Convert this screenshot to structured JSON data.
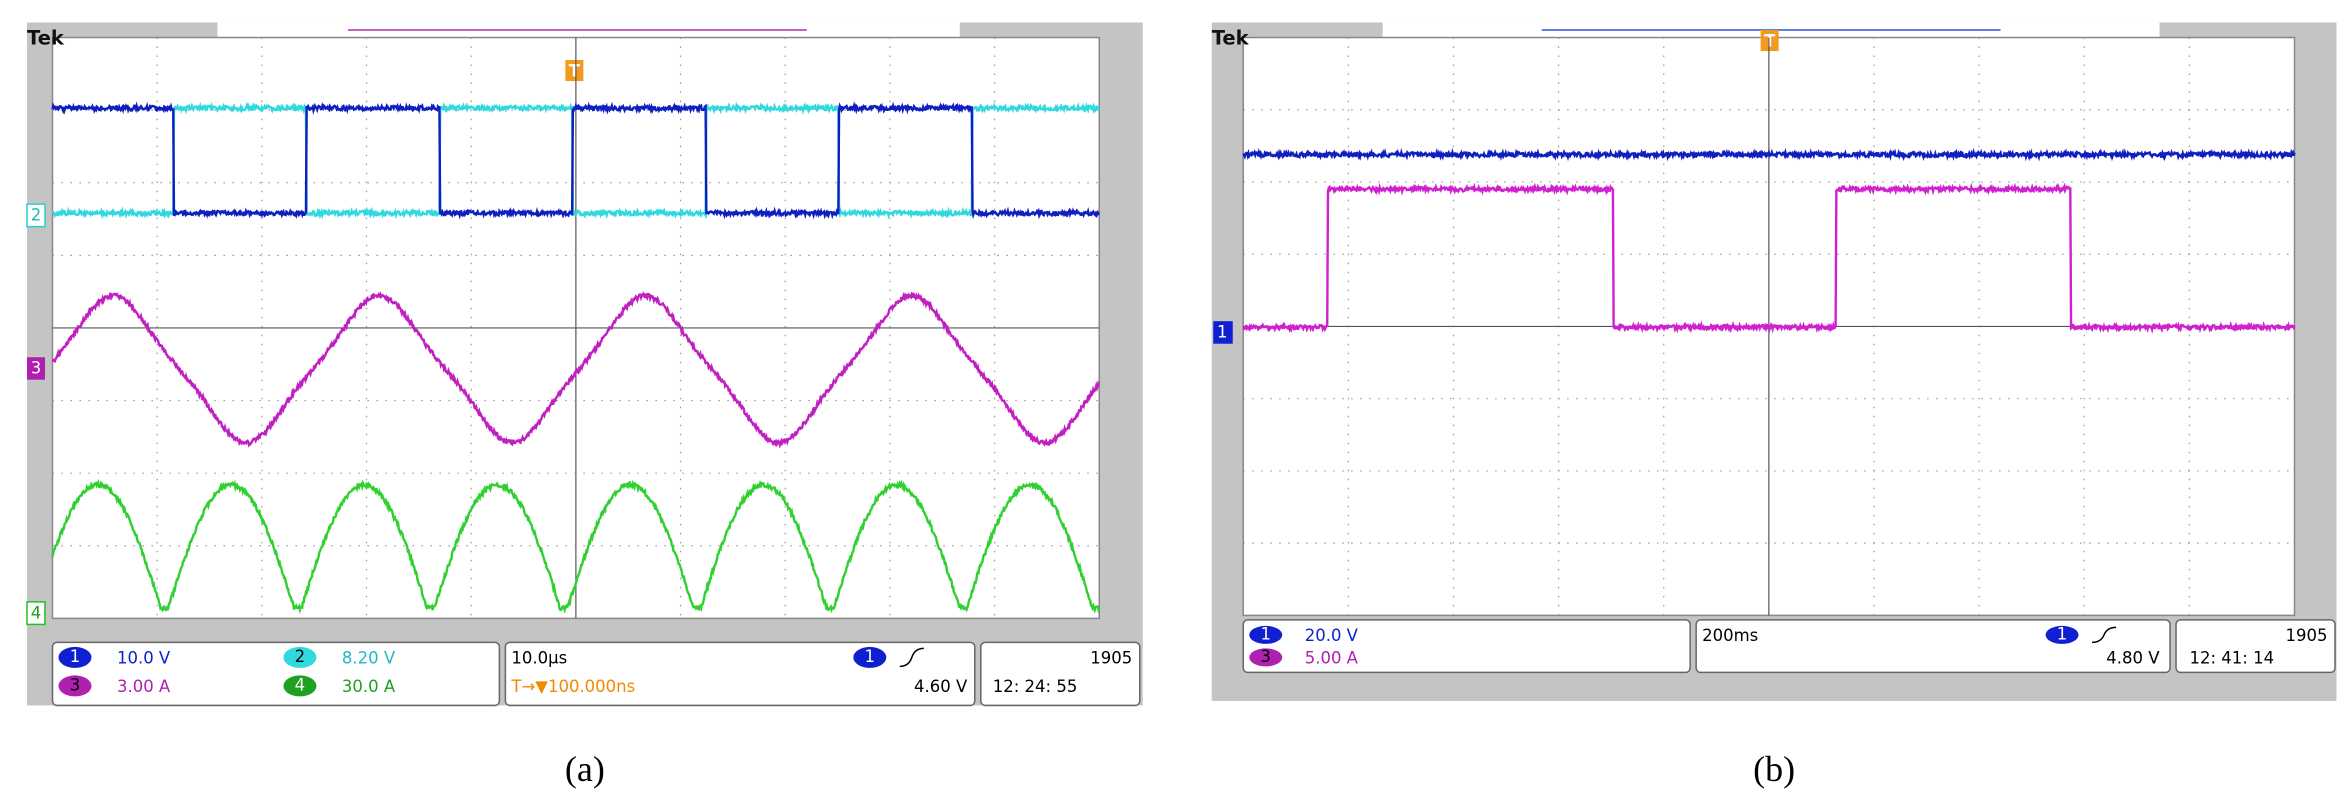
{
  "panel_a": {
    "brand": "Tek",
    "trigger_marker": "T",
    "channel_markers": [
      "2",
      "3",
      "4"
    ],
    "readouts": [
      {
        "channel": "1",
        "scale": "10.0 V"
      },
      {
        "channel": "2",
        "scale": "8.20 V"
      },
      {
        "channel": "3",
        "scale": "3.00 A"
      },
      {
        "channel": "4",
        "scale": "30.0 A"
      }
    ],
    "timebase": "10.0µs",
    "trigger_offset": "T→▼100.000ns",
    "trigger_source": "1",
    "trigger_level": "4.60 V",
    "record": "1905",
    "time": "12: 24: 55",
    "caption": "(a)"
  },
  "panel_b": {
    "brand": "Tek",
    "trigger_marker": "T",
    "channel_markers": [
      "1"
    ],
    "readouts": [
      {
        "channel": "1",
        "scale": "20.0 V"
      },
      {
        "channel": "3",
        "scale": "5.00 A"
      }
    ],
    "timebase": "200ms",
    "trigger_source": "1",
    "trigger_level": "4.80 V",
    "record": "1905",
    "time": "12: 41: 14",
    "caption": "(b)"
  }
}
